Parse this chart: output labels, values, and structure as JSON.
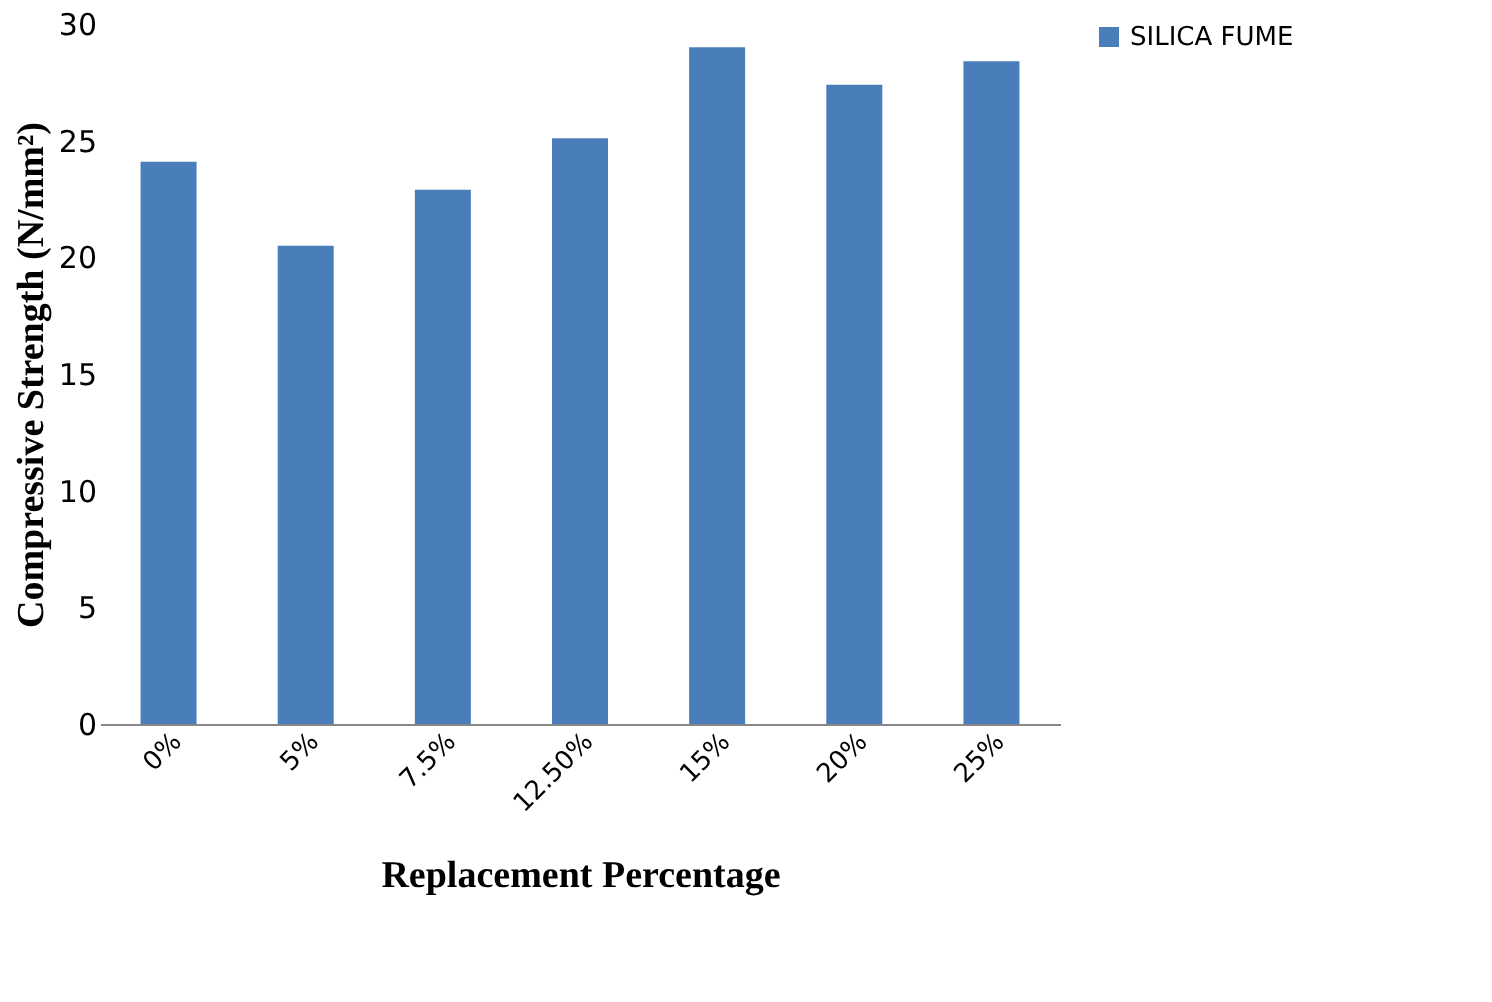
{
  "chart_data": {
    "type": "bar",
    "xlabel": "Replacement Percentage",
    "ylabel": "Compressive Strength (N/mm²)",
    "categories": [
      "0%",
      "5%",
      "7.5%",
      "12.50%",
      "15%",
      "20%",
      "25%"
    ],
    "series": [
      {
        "name": "SILICA FUME",
        "color": "#4a7ebb",
        "values": [
          24.1,
          20.5,
          22.9,
          25.1,
          29.0,
          27.4,
          28.4
        ]
      }
    ],
    "ylim": [
      0,
      30
    ],
    "yticks": [
      0,
      5,
      10,
      15,
      20,
      25,
      30
    ],
    "grid": false,
    "legend": "right"
  }
}
